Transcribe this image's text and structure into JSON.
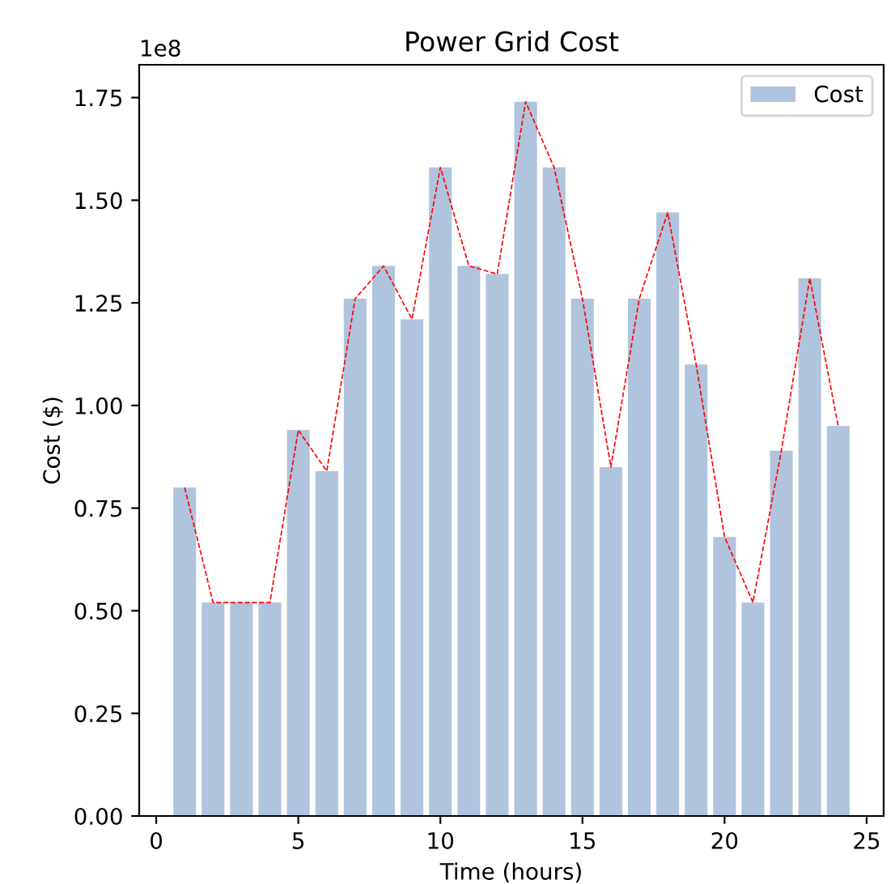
{
  "chart_data": {
    "type": "bar",
    "title": "Power Grid Cost",
    "xlabel": "Time (hours)",
    "ylabel": "Cost ($)",
    "x": [
      1,
      2,
      3,
      4,
      5,
      6,
      7,
      8,
      9,
      10,
      11,
      12,
      13,
      14,
      15,
      16,
      17,
      18,
      19,
      20,
      21,
      22,
      23,
      24
    ],
    "series": [
      {
        "name": "Cost",
        "color": "#b0c4de",
        "values": [
          0.8,
          0.52,
          0.52,
          0.52,
          0.94,
          0.84,
          1.26,
          1.34,
          1.21,
          1.58,
          1.34,
          1.32,
          1.74,
          1.58,
          1.26,
          0.85,
          1.26,
          1.47,
          1.1,
          0.68,
          0.52,
          0.89,
          1.31,
          0.95
        ]
      },
      {
        "type": "line",
        "color": "#ff0000",
        "line_style": "dashed",
        "values": [
          0.8,
          0.52,
          0.52,
          0.52,
          0.94,
          0.84,
          1.26,
          1.34,
          1.21,
          1.58,
          1.34,
          1.32,
          1.74,
          1.58,
          1.26,
          0.85,
          1.26,
          1.47,
          1.1,
          0.68,
          0.52,
          0.89,
          1.31,
          0.95
        ]
      }
    ],
    "xlim": [
      -0.6,
      25.6
    ],
    "xticks": [
      0,
      5,
      10,
      15,
      20,
      25
    ],
    "ylim": [
      0,
      1.83
    ],
    "yticks": [
      {
        "value": 0,
        "label": "0.00"
      },
      {
        "value": 0.25,
        "label": "0.25"
      },
      {
        "value": 0.5,
        "label": "0.50"
      },
      {
        "value": 0.75,
        "label": "0.75"
      },
      {
        "value": 1,
        "label": "1.00"
      },
      {
        "value": 1.25,
        "label": "1.25"
      },
      {
        "value": 1.5,
        "label": "1.50"
      },
      {
        "value": 1.75,
        "label": "1.75"
      }
    ],
    "annotations": [
      "1e8"
    ],
    "legend": "top right",
    "grid": false
  }
}
